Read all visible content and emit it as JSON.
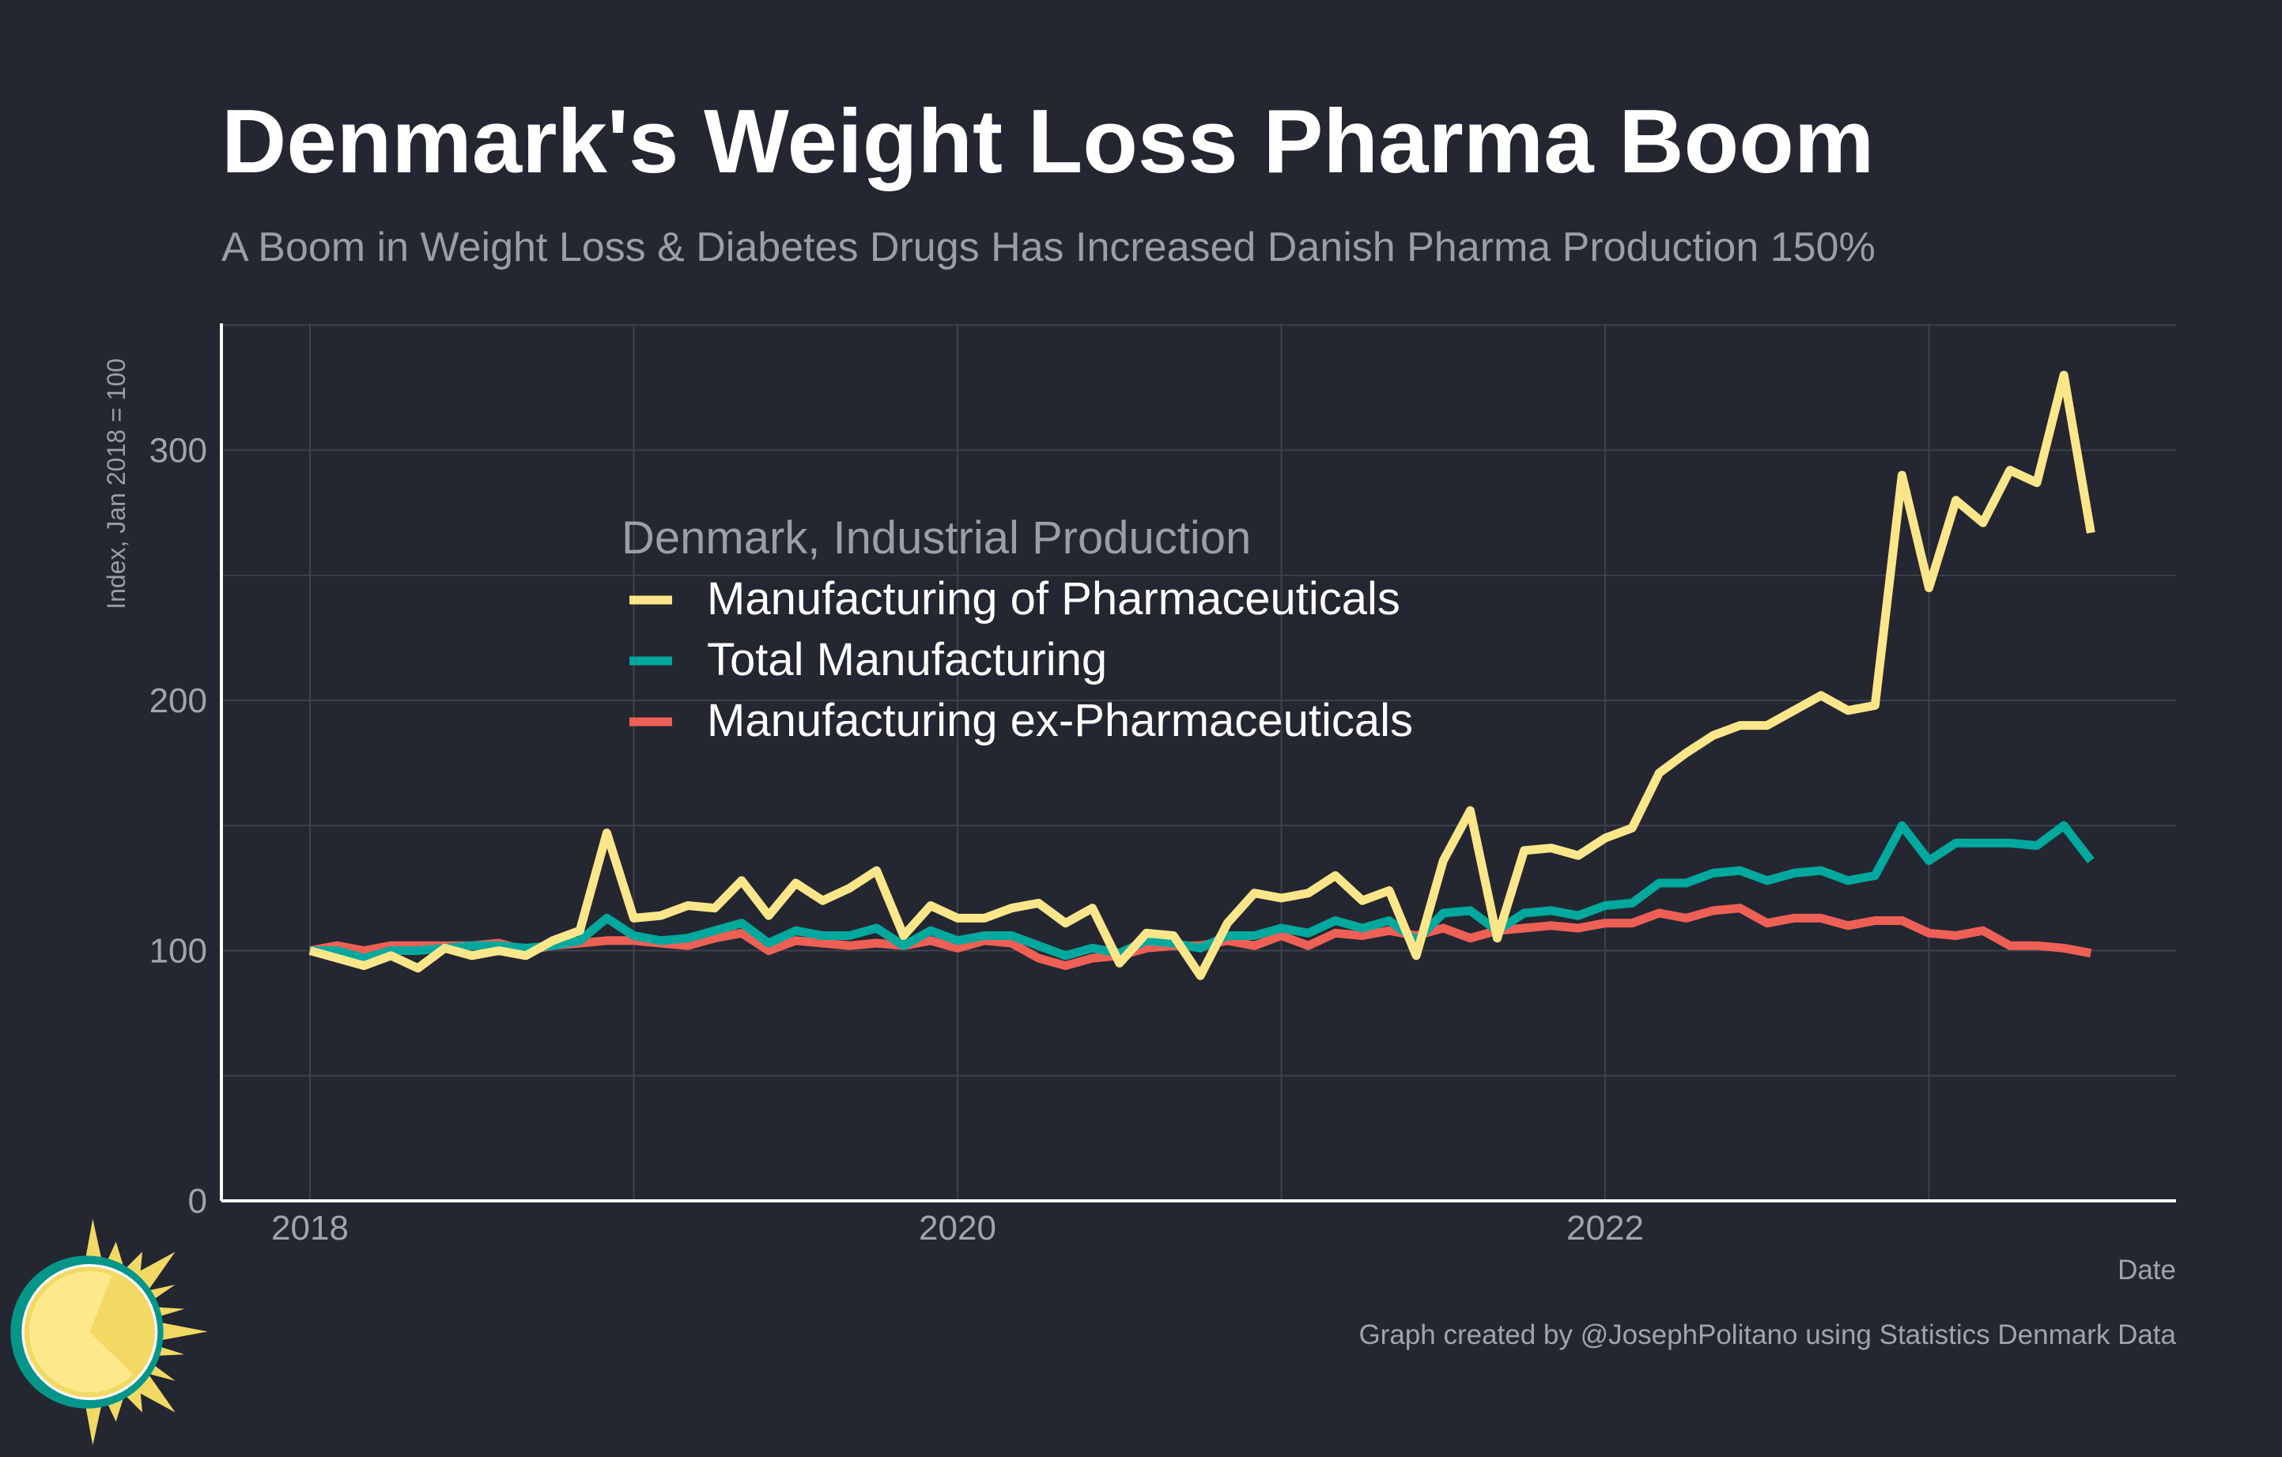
{
  "title": "Denmark's Weight Loss Pharma Boom",
  "subtitle": "A Boom in Weight Loss & Diabetes Drugs Has Increased Danish Pharma Production 150%",
  "credit": "Graph created by @JosephPolitano using Statistics Denmark Data",
  "chart_data": {
    "type": "line",
    "title": "Denmark's Weight Loss Pharma Boom",
    "xlabel": "Date",
    "ylabel": "Index, Jan 2018 = 100",
    "x_start": "2018-01",
    "x_frequency": "monthly",
    "x_ticks": [
      "2018",
      "2020",
      "2022"
    ],
    "y_ticks": [
      "0",
      "100",
      "200",
      "300"
    ],
    "ylim": [
      0,
      350
    ],
    "xlim": [
      "2017-09",
      "2023-12"
    ],
    "grid": true,
    "legend_title": "Denmark, Industrial Production",
    "legend_placement": "center",
    "series": [
      {
        "name": "Manufacturing of Pharmaceuticals",
        "color": "#fde68a",
        "values": [
          100,
          97,
          94,
          98,
          93,
          101,
          98,
          100,
          98,
          104,
          108,
          147,
          113,
          114,
          118,
          117,
          128,
          114,
          127,
          120,
          125,
          132,
          106,
          118,
          113,
          113,
          117,
          119,
          111,
          117,
          95,
          107,
          106,
          90,
          111,
          123,
          121,
          123,
          130,
          120,
          124,
          98,
          136,
          156,
          105,
          140,
          141,
          138,
          145,
          149,
          171,
          179,
          186,
          190,
          190,
          196,
          202,
          196,
          198,
          290,
          245,
          280,
          271,
          292,
          287,
          330,
          267
        ]
      },
      {
        "name": "Total Manufacturing",
        "color": "#00a99d",
        "values": [
          100,
          100,
          97,
          100,
          100,
          101,
          102,
          102,
          101,
          102,
          104,
          113,
          106,
          104,
          105,
          108,
          111,
          103,
          108,
          106,
          106,
          109,
          102,
          108,
          104,
          106,
          106,
          102,
          98,
          101,
          99,
          104,
          103,
          101,
          106,
          106,
          109,
          107,
          112,
          109,
          112,
          104,
          115,
          116,
          108,
          115,
          116,
          114,
          118,
          119,
          127,
          127,
          131,
          132,
          128,
          131,
          132,
          128,
          130,
          150,
          136,
          143,
          143,
          143,
          142,
          150,
          136
        ]
      },
      {
        "name": "Manufacturing ex-Pharmaceuticals",
        "color": "#ee6055",
        "values": [
          100,
          102,
          100,
          102,
          102,
          102,
          102,
          103,
          100,
          102,
          103,
          104,
          104,
          103,
          102,
          105,
          107,
          100,
          104,
          103,
          102,
          103,
          102,
          104,
          101,
          104,
          103,
          97,
          94,
          97,
          98,
          101,
          102,
          102,
          104,
          102,
          106,
          102,
          107,
          106,
          108,
          106,
          109,
          105,
          108,
          109,
          110,
          109,
          111,
          111,
          115,
          113,
          116,
          117,
          111,
          113,
          113,
          110,
          112,
          112,
          107,
          106,
          108,
          102,
          102,
          101,
          99
        ]
      }
    ]
  }
}
